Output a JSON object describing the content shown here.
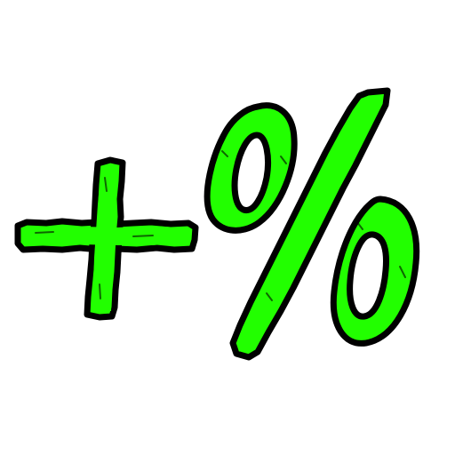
{
  "image": {
    "symbols": [
      "+",
      "%"
    ],
    "fill_color": "#22ff00",
    "outline_color": "#000000",
    "background_color": "#ffffff",
    "style": "hand-drawn rough outline"
  }
}
